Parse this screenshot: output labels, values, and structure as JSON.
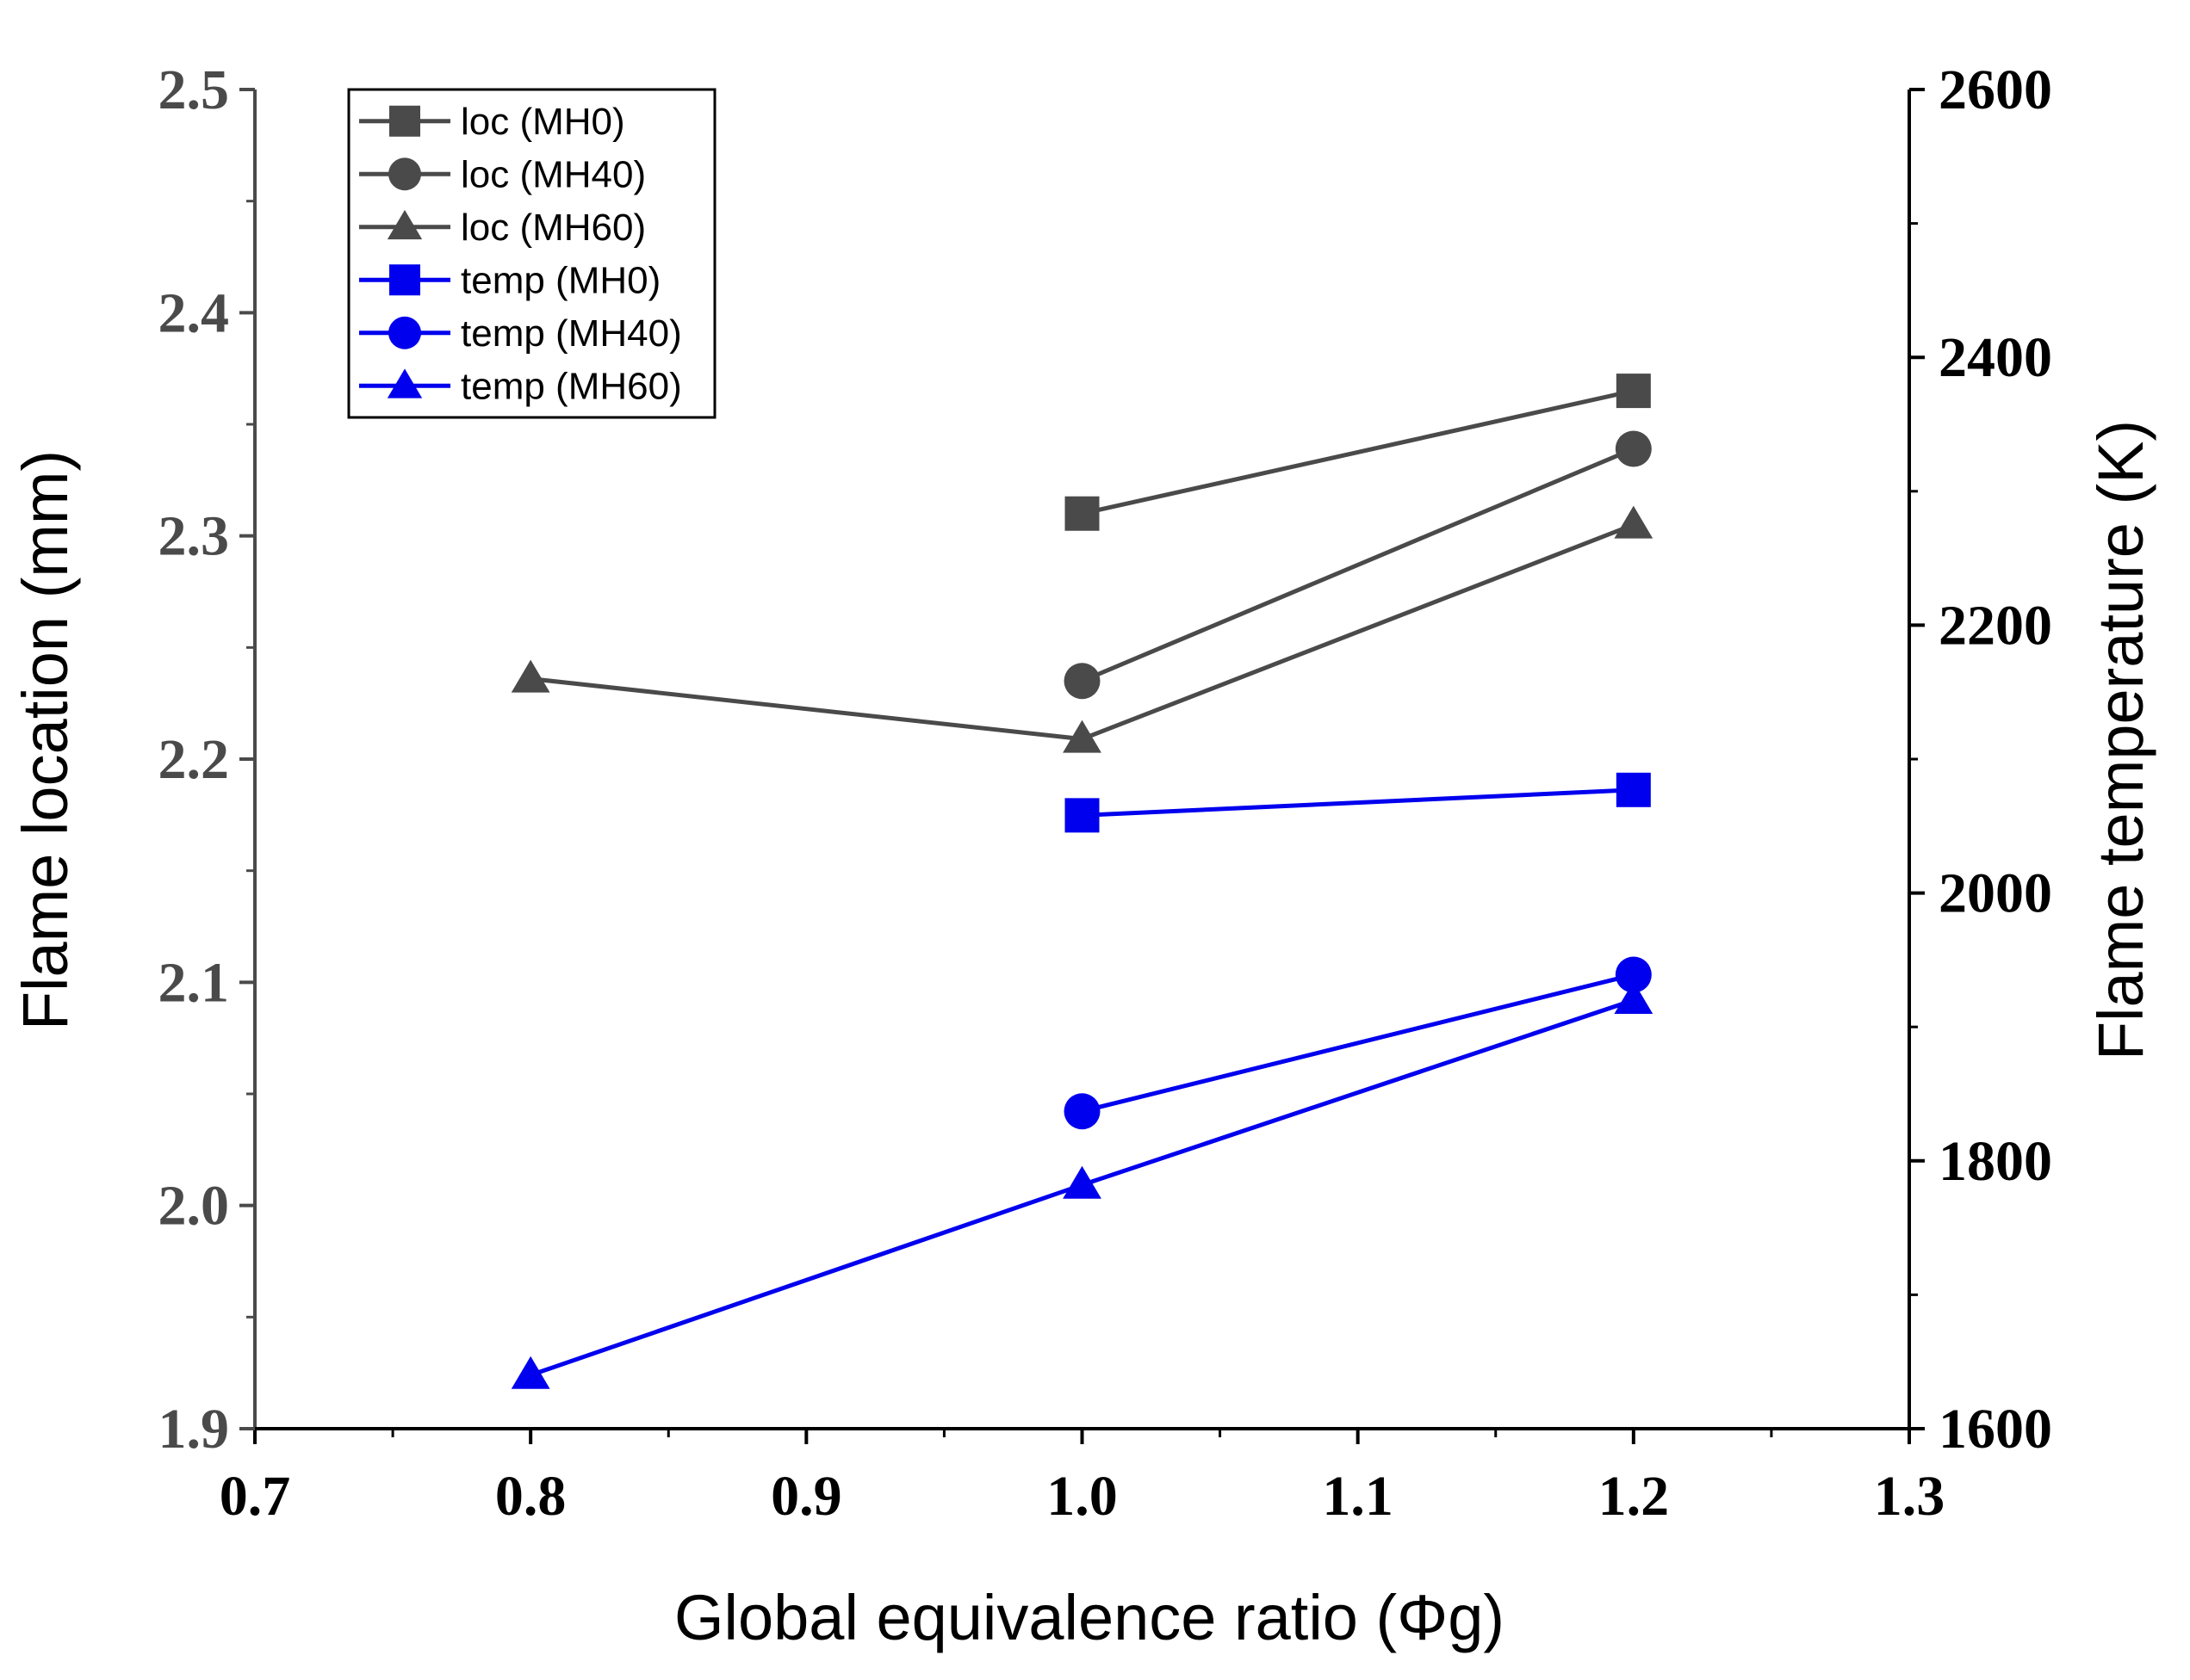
{
  "chart_data": {
    "type": "line",
    "title": "",
    "xlabel": "Global equivalence ratio (Φg)",
    "ylabel_left": "Flame location (mm)",
    "ylabel_right": "Flame temperature (K)",
    "xlim": [
      0.7,
      1.3
    ],
    "ylim_left": [
      1.9,
      2.5
    ],
    "ylim_right": [
      1600,
      2600
    ],
    "x_ticks": [
      "0.7",
      "0.8",
      "0.9",
      "1.0",
      "1.1",
      "1.2",
      "1.3"
    ],
    "y_left_ticks": [
      "1.9",
      "2.0",
      "2.1",
      "2.2",
      "2.3",
      "2.4",
      "2.5"
    ],
    "y_right_ticks": [
      "1600",
      "1800",
      "2000",
      "2200",
      "2400",
      "2600"
    ],
    "grid": false,
    "legend_position": "top-left",
    "series": [
      {
        "name": "loc (MH0)",
        "axis": "left",
        "marker": "square",
        "color": "#4a4a4a",
        "x": [
          1.0,
          1.2
        ],
        "y": [
          2.31,
          2.365
        ]
      },
      {
        "name": "loc (MH40)",
        "axis": "left",
        "marker": "circle",
        "color": "#4a4a4a",
        "x": [
          1.0,
          1.2
        ],
        "y": [
          2.235,
          2.339
        ]
      },
      {
        "name": "loc (MH60)",
        "axis": "left",
        "marker": "triangle",
        "color": "#4a4a4a",
        "x": [
          0.8,
          1.0,
          1.2
        ],
        "y": [
          2.236,
          2.209,
          2.305
        ]
      },
      {
        "name": "temp (MH0)",
        "axis": "right",
        "marker": "square",
        "color": "#0000ee",
        "x": [
          1.0,
          1.2
        ],
        "y": [
          2058,
          2077
        ]
      },
      {
        "name": "temp (MH40)",
        "axis": "right",
        "marker": "circle",
        "color": "#0000ee",
        "x": [
          1.0,
          1.2
        ],
        "y": [
          1837,
          1939
        ]
      },
      {
        "name": "temp (MH60)",
        "axis": "right",
        "marker": "triangle",
        "color": "#0000ee",
        "x": [
          0.8,
          1.0,
          1.2
        ],
        "y": [
          1640,
          1782,
          1920
        ]
      }
    ]
  }
}
